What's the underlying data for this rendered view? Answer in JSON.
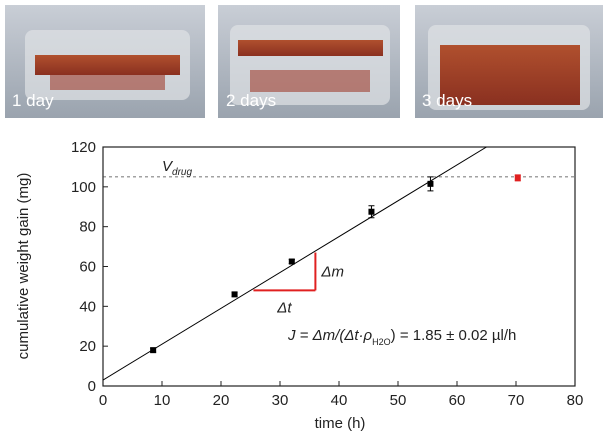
{
  "photos": [
    {
      "label": "1 day"
    },
    {
      "label": "2 days"
    },
    {
      "label": "3 days"
    }
  ],
  "chart_data": {
    "type": "scatter",
    "x_label": "time (h)",
    "y_label": "cumulative weight gain (mg)",
    "xlim": [
      0,
      80
    ],
    "ylim": [
      0,
      120
    ],
    "xticks": [
      0,
      10,
      20,
      30,
      40,
      50,
      60,
      70,
      80
    ],
    "yticks": [
      0,
      20,
      40,
      60,
      80,
      100,
      120
    ],
    "series": [
      {
        "color": "#000000",
        "x": [
          8.5,
          22.3,
          32,
          45.5,
          55.5
        ],
        "values": [
          18,
          46,
          62.5,
          87.5,
          101.5
        ],
        "errors": [
          1,
          1,
          1,
          3,
          3.5
        ]
      },
      {
        "color": "#e02020",
        "x": [
          70.3
        ],
        "values": [
          104.5
        ],
        "errors": [
          1.5
        ]
      }
    ],
    "fit_line": {
      "color": "#000000",
      "x": [
        0,
        65
      ],
      "values": [
        3,
        120
      ]
    },
    "reference_line": {
      "value": 105,
      "label": "V",
      "label_sub": "drug"
    },
    "triangle": {
      "color": "#e02020",
      "x": [
        25.5,
        36
      ],
      "y": [
        48,
        67
      ],
      "dx_label": "Δt",
      "dy_label": "Δm"
    },
    "annotation": {
      "before": "J = Δm/(Δt·ρ",
      "sub": "H2O",
      "after": ") = 1.85 ± 0.02 µl/h"
    }
  }
}
